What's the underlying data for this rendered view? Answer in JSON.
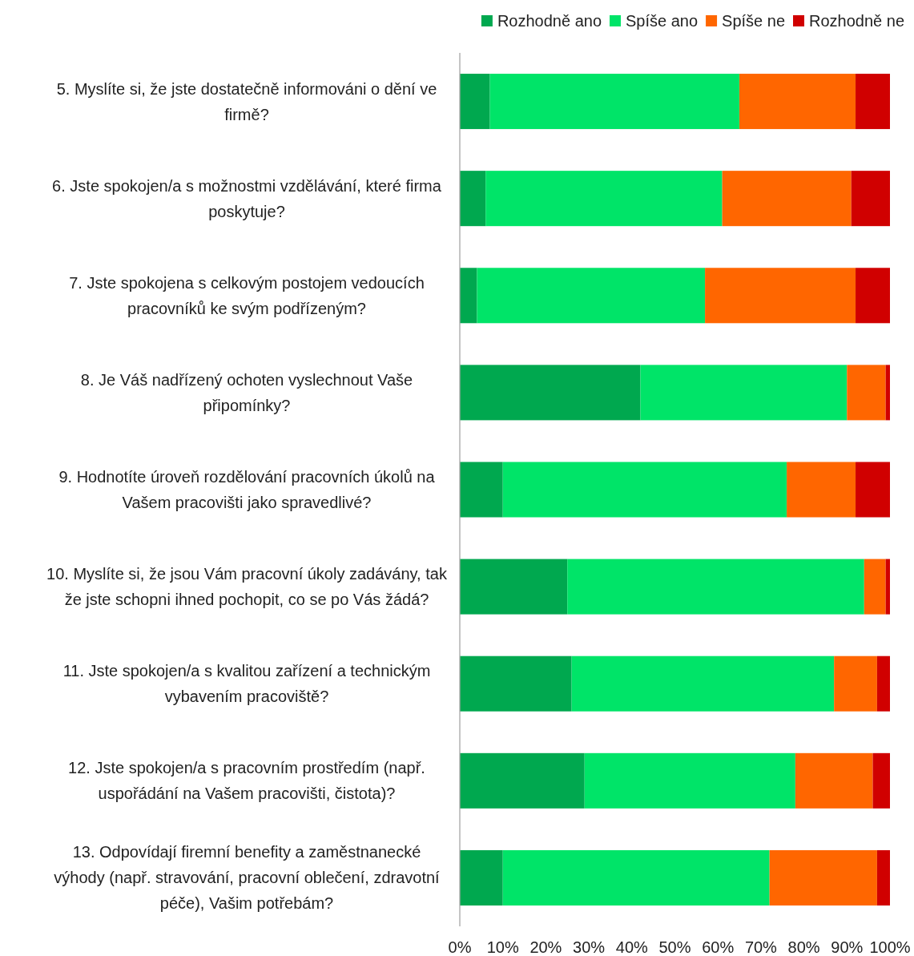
{
  "chart_data": {
    "type": "bar",
    "orientation": "horizontal",
    "stacked": true,
    "legend": "top right",
    "grid": false,
    "categories": [
      "5. Myslíte si, že jste dostatečně informováni o dění ve firmě?",
      "6. Jste spokojen/a s možnostmi vzdělávání, které firma poskytuje?",
      "7. Jste spokojena s celkovým postojem vedoucích pracovníků ke svým podřízeným?",
      "8. Je Váš nadřízený ochoten vyslechnout Vaše připomínky?",
      "9. Hodnotíte úroveň rozdělování pracovních úkolů na Vašem pracovišti jako spravedlivé?",
      "10. Myslíte si, že jsou Vám pracovní úkoly zadávány, tak že jste schopni ihned pochopit, co se po Vás žádá?",
      "11. Jste spokojen/a s kvalitou zařízení a technickým vybavením pracoviště?",
      "12. Jste spokojen/a s pracovním prostředím (např. uspořádání na Vašem pracovišti, čistota)?",
      "13. Odpovídají firemní benefity a zaměstnanecké výhody (např. stravování, pracovní oblečení, zdravotní péče), Vašim potřebám?"
    ],
    "series": [
      {
        "name": "Rozhodně ano",
        "color": "#00a84f",
        "values": [
          7,
          6,
          4,
          42,
          10,
          25,
          26,
          29,
          10
        ]
      },
      {
        "name": "Spíše ano",
        "color": "#00e468",
        "values": [
          58,
          55,
          53,
          48,
          66,
          69,
          61,
          49,
          62
        ]
      },
      {
        "name": "Spíše ne",
        "color": "#ff6600",
        "values": [
          27,
          30,
          35,
          9,
          16,
          5,
          10,
          18,
          25
        ]
      },
      {
        "name": "Rozhodně ne",
        "color": "#d00000",
        "values": [
          8,
          9,
          8,
          1,
          8,
          1,
          3,
          4,
          3
        ]
      }
    ],
    "xlim": [
      0,
      100
    ],
    "xticks": [
      {
        "value": 0,
        "label": "0%"
      },
      {
        "value": 10,
        "label": "10%"
      },
      {
        "value": 20,
        "label": "20%"
      },
      {
        "value": 30,
        "label": "30%"
      },
      {
        "value": 40,
        "label": "40%"
      },
      {
        "value": 50,
        "label": "50%"
      },
      {
        "value": 60,
        "label": "60%"
      },
      {
        "value": 70,
        "label": "70%"
      },
      {
        "value": 80,
        "label": "80%"
      },
      {
        "value": 90,
        "label": "90%"
      },
      {
        "value": 100,
        "label": "100%"
      }
    ]
  }
}
